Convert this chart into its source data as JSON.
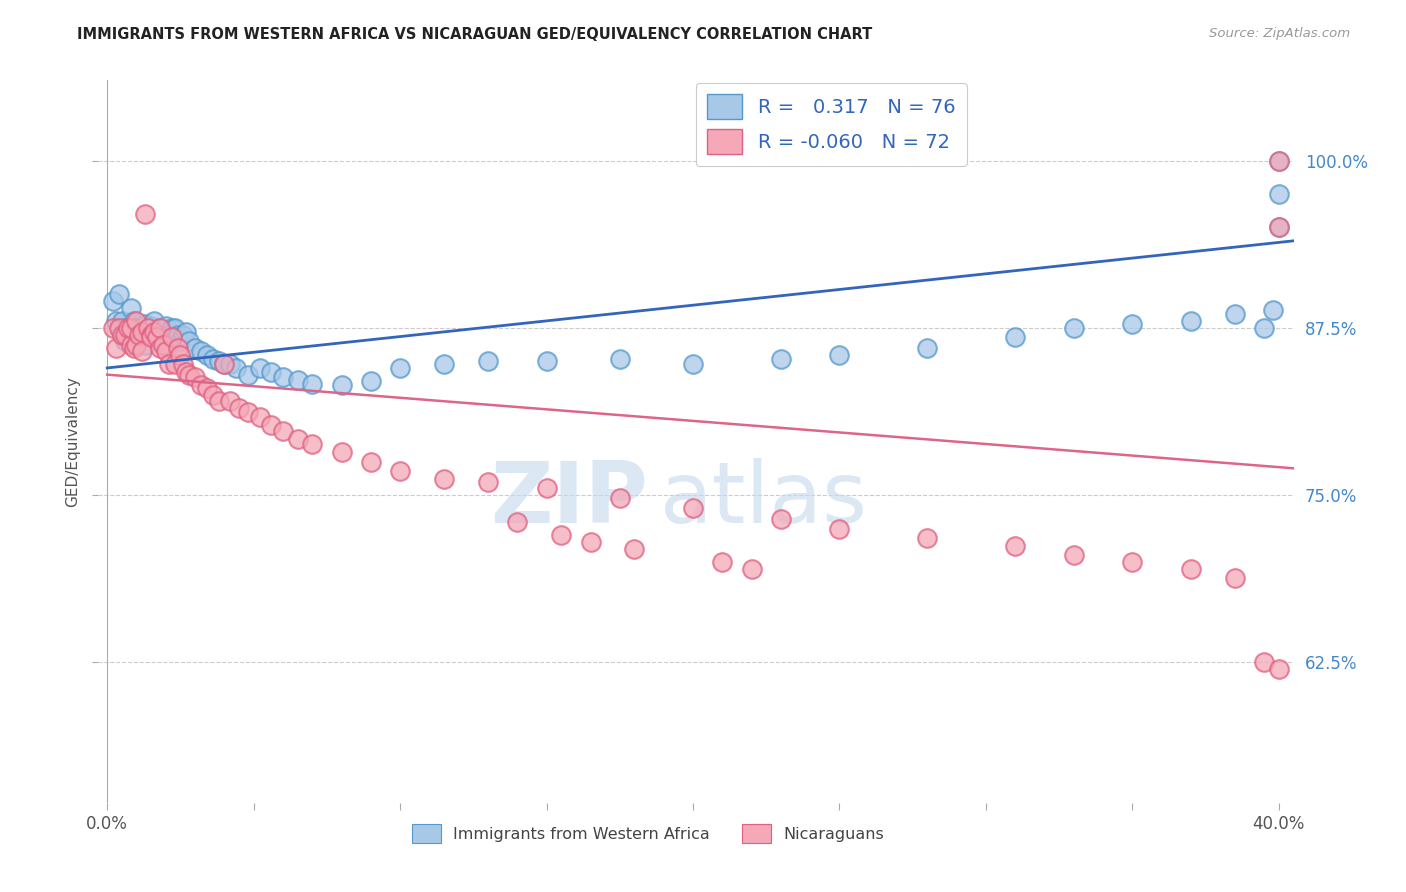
{
  "title": "IMMIGRANTS FROM WESTERN AFRICA VS NICARAGUAN GED/EQUIVALENCY CORRELATION CHART",
  "source": "Source: ZipAtlas.com",
  "ylabel": "GED/Equivalency",
  "ytick_labels": [
    "100.0%",
    "87.5%",
    "75.0%",
    "62.5%"
  ],
  "ytick_values": [
    1.0,
    0.875,
    0.75,
    0.625
  ],
  "xlim": [
    -0.003,
    0.405
  ],
  "ylim": [
    0.52,
    1.06
  ],
  "blue_R": 0.317,
  "blue_N": 76,
  "pink_R": -0.06,
  "pink_N": 72,
  "legend_label_blue": "Immigrants from Western Africa",
  "legend_label_pink": "Nicaraguans",
  "blue_color": "#a8c8e8",
  "pink_color": "#f4a8b8",
  "blue_edge_color": "#5599cc",
  "pink_edge_color": "#e06080",
  "blue_line_color": "#3366bb",
  "pink_line_color": "#dd6688",
  "watermark_zip": "ZIP",
  "watermark_atlas": "atlas",
  "blue_trend_x0": 0.0,
  "blue_trend_y0": 0.845,
  "blue_trend_x1": 0.405,
  "blue_trend_y1": 0.94,
  "pink_trend_x0": 0.0,
  "pink_trend_y0": 0.84,
  "pink_trend_x1": 0.405,
  "pink_trend_y1": 0.77,
  "blue_x": [
    0.002,
    0.003,
    0.004,
    0.004,
    0.005,
    0.005,
    0.006,
    0.006,
    0.007,
    0.007,
    0.008,
    0.008,
    0.009,
    0.009,
    0.01,
    0.01,
    0.011,
    0.011,
    0.012,
    0.012,
    0.013,
    0.013,
    0.014,
    0.014,
    0.015,
    0.015,
    0.016,
    0.017,
    0.018,
    0.018,
    0.019,
    0.02,
    0.02,
    0.021,
    0.022,
    0.023,
    0.024,
    0.025,
    0.026,
    0.027,
    0.028,
    0.03,
    0.032,
    0.034,
    0.036,
    0.038,
    0.04,
    0.042,
    0.044,
    0.048,
    0.052,
    0.056,
    0.06,
    0.065,
    0.07,
    0.08,
    0.09,
    0.1,
    0.115,
    0.13,
    0.15,
    0.175,
    0.2,
    0.23,
    0.25,
    0.28,
    0.31,
    0.33,
    0.35,
    0.37,
    0.385,
    0.395,
    0.398,
    0.4,
    0.4,
    0.4
  ],
  "blue_y": [
    0.895,
    0.88,
    0.875,
    0.9,
    0.87,
    0.88,
    0.875,
    0.865,
    0.87,
    0.875,
    0.872,
    0.89,
    0.875,
    0.88,
    0.875,
    0.868,
    0.87,
    0.875,
    0.875,
    0.872,
    0.878,
    0.862,
    0.875,
    0.87,
    0.875,
    0.876,
    0.88,
    0.872,
    0.875,
    0.865,
    0.87,
    0.876,
    0.868,
    0.87,
    0.875,
    0.875,
    0.87,
    0.865,
    0.87,
    0.872,
    0.865,
    0.86,
    0.858,
    0.855,
    0.852,
    0.85,
    0.848,
    0.848,
    0.845,
    0.84,
    0.845,
    0.842,
    0.838,
    0.836,
    0.833,
    0.832,
    0.835,
    0.845,
    0.848,
    0.85,
    0.85,
    0.852,
    0.848,
    0.852,
    0.855,
    0.86,
    0.868,
    0.875,
    0.878,
    0.88,
    0.885,
    0.875,
    0.888,
    0.95,
    0.975,
    1.0
  ],
  "pink_x": [
    0.002,
    0.003,
    0.004,
    0.005,
    0.006,
    0.007,
    0.008,
    0.008,
    0.009,
    0.01,
    0.01,
    0.011,
    0.012,
    0.012,
    0.013,
    0.014,
    0.015,
    0.015,
    0.016,
    0.017,
    0.018,
    0.018,
    0.019,
    0.02,
    0.021,
    0.022,
    0.023,
    0.024,
    0.025,
    0.026,
    0.027,
    0.028,
    0.03,
    0.032,
    0.034,
    0.036,
    0.038,
    0.04,
    0.042,
    0.045,
    0.048,
    0.052,
    0.056,
    0.06,
    0.065,
    0.07,
    0.08,
    0.09,
    0.1,
    0.115,
    0.13,
    0.15,
    0.175,
    0.2,
    0.23,
    0.25,
    0.28,
    0.31,
    0.33,
    0.35,
    0.37,
    0.385,
    0.395,
    0.4,
    0.4,
    0.4,
    0.14,
    0.155,
    0.165,
    0.18,
    0.21,
    0.22
  ],
  "pink_y": [
    0.875,
    0.86,
    0.875,
    0.87,
    0.87,
    0.875,
    0.862,
    0.875,
    0.86,
    0.862,
    0.88,
    0.87,
    0.872,
    0.858,
    0.96,
    0.875,
    0.87,
    0.868,
    0.872,
    0.868,
    0.875,
    0.86,
    0.862,
    0.858,
    0.848,
    0.868,
    0.848,
    0.86,
    0.855,
    0.848,
    0.842,
    0.84,
    0.838,
    0.832,
    0.83,
    0.825,
    0.82,
    0.848,
    0.82,
    0.815,
    0.812,
    0.808,
    0.802,
    0.798,
    0.792,
    0.788,
    0.782,
    0.775,
    0.768,
    0.762,
    0.76,
    0.755,
    0.748,
    0.74,
    0.732,
    0.725,
    0.718,
    0.712,
    0.705,
    0.7,
    0.695,
    0.688,
    0.625,
    0.62,
    1.0,
    0.95,
    0.73,
    0.72,
    0.715,
    0.71,
    0.7,
    0.695
  ]
}
